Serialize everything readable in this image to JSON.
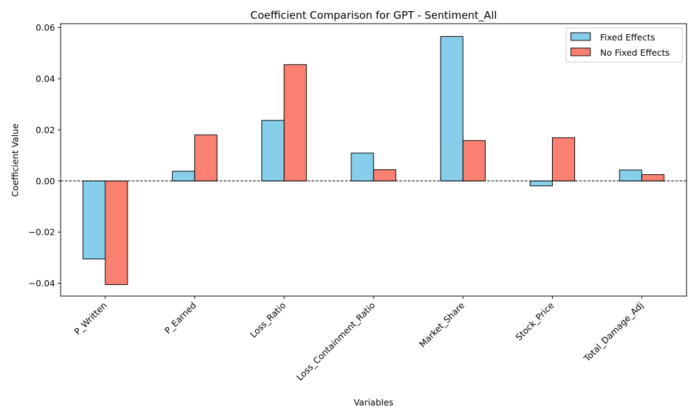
{
  "chart_data": {
    "type": "bar",
    "title": "Coefficient Comparison for GPT - Sentiment_All",
    "xlabel": "Variables",
    "ylabel": "Coefficient Value",
    "categories": [
      "P_Written",
      "P_Earned",
      "Loss_Ratio",
      "Loss_Containment_Ratio",
      "Market_Share",
      "Stock_Price",
      "Total_Damage_Adj"
    ],
    "series": [
      {
        "name": "Fixed Effects",
        "color": "#87ceeb",
        "values": [
          -0.0305,
          0.0038,
          0.0237,
          0.0109,
          0.0565,
          -0.0019,
          0.0043
        ]
      },
      {
        "name": "No Fixed Effects",
        "color": "#fa8072",
        "values": [
          -0.0405,
          0.018,
          0.0455,
          0.0044,
          0.0158,
          0.0169,
          0.0025
        ]
      }
    ],
    "ylim": [
      -0.045,
      0.0615
    ],
    "yticks": [
      -0.04,
      -0.02,
      0.0,
      0.02,
      0.04,
      0.06
    ],
    "ytick_labels": [
      "−0.04",
      "−0.02",
      "0.00",
      "0.02",
      "0.04",
      "0.06"
    ],
    "zero_line": "dashed",
    "grid": false,
    "legend_position": "top-right"
  }
}
